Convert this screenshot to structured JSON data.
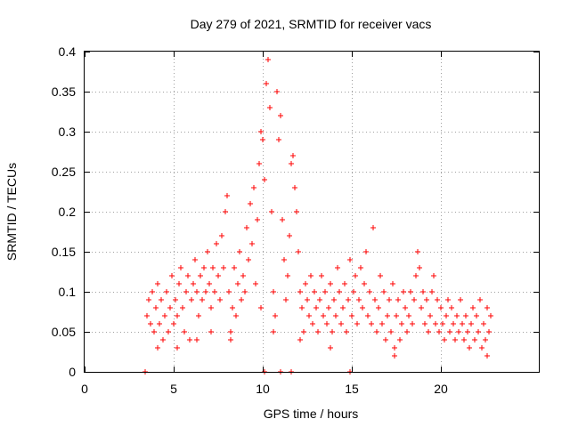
{
  "chart_data": {
    "type": "scatter",
    "title": "Day 279 of 2021, SRMTID for receiver vacs",
    "xlabel": "GPS time / hours",
    "ylabel": "SRMTID / TECUs",
    "xlim": [
      0,
      25.5
    ],
    "ylim": [
      0,
      0.4
    ],
    "x_ticks": [
      0,
      5,
      10,
      15,
      20
    ],
    "x_tick_labels": [
      "0",
      "5",
      "10",
      "15",
      "20"
    ],
    "y_ticks": [
      0,
      0.05,
      0.1,
      0.15,
      0.2,
      0.25,
      0.3,
      0.35,
      0.4
    ],
    "y_tick_labels": [
      "0",
      "0.05",
      "0.1",
      "0.15",
      "0.2",
      "0.25",
      "0.3",
      "0.35",
      "0.4"
    ],
    "grid": true,
    "marker": "+",
    "color": "#ff0000",
    "series": [
      {
        "name": "SRMTID",
        "points": [
          [
            3.4,
            0.0
          ],
          [
            3.5,
            0.07
          ],
          [
            3.6,
            0.09
          ],
          [
            3.7,
            0.06
          ],
          [
            3.8,
            0.1
          ],
          [
            3.9,
            0.05
          ],
          [
            4.0,
            0.08
          ],
          [
            4.1,
            0.11
          ],
          [
            4.2,
            0.06
          ],
          [
            4.3,
            0.09
          ],
          [
            4.4,
            0.04
          ],
          [
            4.5,
            0.07
          ],
          [
            4.6,
            0.1
          ],
          [
            4.7,
            0.05
          ],
          [
            4.8,
            0.08
          ],
          [
            4.9,
            0.12
          ],
          [
            5.0,
            0.06
          ],
          [
            5.1,
            0.09
          ],
          [
            5.2,
            0.07
          ],
          [
            5.3,
            0.11
          ],
          [
            5.4,
            0.13
          ],
          [
            5.5,
            0.08
          ],
          [
            5.6,
            0.05
          ],
          [
            5.7,
            0.1
          ],
          [
            5.8,
            0.12
          ],
          [
            5.9,
            0.04
          ],
          [
            6.0,
            0.09
          ],
          [
            6.1,
            0.11
          ],
          [
            6.2,
            0.14
          ],
          [
            6.3,
            0.1
          ],
          [
            6.4,
            0.07
          ],
          [
            6.5,
            0.12
          ],
          [
            6.6,
            0.09
          ],
          [
            6.7,
            0.13
          ],
          [
            6.8,
            0.1
          ],
          [
            6.9,
            0.15
          ],
          [
            7.0,
            0.11
          ],
          [
            7.1,
            0.08
          ],
          [
            7.2,
            0.13
          ],
          [
            7.3,
            0.1
          ],
          [
            7.4,
            0.16
          ],
          [
            7.5,
            0.12
          ],
          [
            7.6,
            0.09
          ],
          [
            7.7,
            0.17
          ],
          [
            7.8,
            0.13
          ],
          [
            7.9,
            0.2
          ],
          [
            8.0,
            0.22
          ],
          [
            8.1,
            0.1
          ],
          [
            8.2,
            0.05
          ],
          [
            8.3,
            0.08
          ],
          [
            8.4,
            0.13
          ],
          [
            8.5,
            0.07
          ],
          [
            8.6,
            0.11
          ],
          [
            8.7,
            0.15
          ],
          [
            8.8,
            0.09
          ],
          [
            8.9,
            0.12
          ],
          [
            9.0,
            0.1
          ],
          [
            9.1,
            0.18
          ],
          [
            9.2,
            0.14
          ],
          [
            9.3,
            0.21
          ],
          [
            9.4,
            0.16
          ],
          [
            9.5,
            0.23
          ],
          [
            9.6,
            0.11
          ],
          [
            9.7,
            0.19
          ],
          [
            9.8,
            0.26
          ],
          [
            9.9,
            0.3
          ],
          [
            10.0,
            0.29
          ],
          [
            10.1,
            0.24
          ],
          [
            10.2,
            0.36
          ],
          [
            10.3,
            0.39
          ],
          [
            10.4,
            0.33
          ],
          [
            10.5,
            0.2
          ],
          [
            10.6,
            0.1
          ],
          [
            10.7,
            0.07
          ],
          [
            10.8,
            0.35
          ],
          [
            10.9,
            0.29
          ],
          [
            11.0,
            0.32
          ],
          [
            11.1,
            0.19
          ],
          [
            11.2,
            0.14
          ],
          [
            11.3,
            0.09
          ],
          [
            11.4,
            0.12
          ],
          [
            11.5,
            0.17
          ],
          [
            11.6,
            0.26
          ],
          [
            11.7,
            0.27
          ],
          [
            11.8,
            0.23
          ],
          [
            11.9,
            0.2
          ],
          [
            12.0,
            0.15
          ],
          [
            12.1,
            0.1
          ],
          [
            12.2,
            0.08
          ],
          [
            12.3,
            0.05
          ],
          [
            12.4,
            0.11
          ],
          [
            12.5,
            0.09
          ],
          [
            12.6,
            0.07
          ],
          [
            12.7,
            0.12
          ],
          [
            12.8,
            0.06
          ],
          [
            12.9,
            0.1
          ],
          [
            13.0,
            0.08
          ],
          [
            13.1,
            0.05
          ],
          [
            13.2,
            0.09
          ],
          [
            13.3,
            0.12
          ],
          [
            13.4,
            0.07
          ],
          [
            13.5,
            0.1
          ],
          [
            13.6,
            0.06
          ],
          [
            13.7,
            0.08
          ],
          [
            13.8,
            0.11
          ],
          [
            13.9,
            0.05
          ],
          [
            14.0,
            0.09
          ],
          [
            14.1,
            0.07
          ],
          [
            14.2,
            0.13
          ],
          [
            14.3,
            0.1
          ],
          [
            14.4,
            0.06
          ],
          [
            14.5,
            0.08
          ],
          [
            14.6,
            0.11
          ],
          [
            14.7,
            0.05
          ],
          [
            14.8,
            0.09
          ],
          [
            14.9,
            0.14
          ],
          [
            15.0,
            0.07
          ],
          [
            15.1,
            0.1
          ],
          [
            15.2,
            0.12
          ],
          [
            15.3,
            0.06
          ],
          [
            15.4,
            0.09
          ],
          [
            15.5,
            0.13
          ],
          [
            15.6,
            0.08
          ],
          [
            15.7,
            0.11
          ],
          [
            15.8,
            0.15
          ],
          [
            15.9,
            0.07
          ],
          [
            16.0,
            0.1
          ],
          [
            16.1,
            0.06
          ],
          [
            16.2,
            0.18
          ],
          [
            16.3,
            0.09
          ],
          [
            16.4,
            0.05
          ],
          [
            16.5,
            0.08
          ],
          [
            16.6,
            0.12
          ],
          [
            16.7,
            0.06
          ],
          [
            16.8,
            0.1
          ],
          [
            16.9,
            0.04
          ],
          [
            17.0,
            0.07
          ],
          [
            17.1,
            0.09
          ],
          [
            17.2,
            0.05
          ],
          [
            17.3,
            0.11
          ],
          [
            17.4,
            0.03
          ],
          [
            17.5,
            0.07
          ],
          [
            17.6,
            0.09
          ],
          [
            17.7,
            0.04
          ],
          [
            17.8,
            0.06
          ],
          [
            17.9,
            0.1
          ],
          [
            18.0,
            0.08
          ],
          [
            18.1,
            0.05
          ],
          [
            18.2,
            0.07
          ],
          [
            18.3,
            0.1
          ],
          [
            18.4,
            0.06
          ],
          [
            18.5,
            0.09
          ],
          [
            18.6,
            0.12
          ],
          [
            18.7,
            0.15
          ],
          [
            18.8,
            0.13
          ],
          [
            18.9,
            0.08
          ],
          [
            19.0,
            0.1
          ],
          [
            19.1,
            0.06
          ],
          [
            19.2,
            0.09
          ],
          [
            19.3,
            0.05
          ],
          [
            19.4,
            0.07
          ],
          [
            19.5,
            0.1
          ],
          [
            19.6,
            0.12
          ],
          [
            19.7,
            0.06
          ],
          [
            19.8,
            0.09
          ],
          [
            19.9,
            0.05
          ],
          [
            20.0,
            0.08
          ],
          [
            20.1,
            0.06
          ],
          [
            20.2,
            0.04
          ],
          [
            20.3,
            0.07
          ],
          [
            20.4,
            0.09
          ],
          [
            20.5,
            0.05
          ],
          [
            20.6,
            0.08
          ],
          [
            20.7,
            0.06
          ],
          [
            20.8,
            0.04
          ],
          [
            20.9,
            0.07
          ],
          [
            21.0,
            0.05
          ],
          [
            21.1,
            0.09
          ],
          [
            21.2,
            0.06
          ],
          [
            21.3,
            0.04
          ],
          [
            21.4,
            0.07
          ],
          [
            21.5,
            0.05
          ],
          [
            21.6,
            0.03
          ],
          [
            21.7,
            0.06
          ],
          [
            21.8,
            0.08
          ],
          [
            21.9,
            0.04
          ],
          [
            22.0,
            0.07
          ],
          [
            22.1,
            0.05
          ],
          [
            22.2,
            0.09
          ],
          [
            22.3,
            0.03
          ],
          [
            22.4,
            0.06
          ],
          [
            22.5,
            0.04
          ],
          [
            22.6,
            0.08
          ],
          [
            22.7,
            0.05
          ],
          [
            22.8,
            0.07
          ],
          [
            10.1,
            0.0
          ],
          [
            11.0,
            0.0
          ],
          [
            11.6,
            0.0
          ],
          [
            14.9,
            0.0
          ],
          [
            5.2,
            0.03
          ],
          [
            6.3,
            0.04
          ],
          [
            8.2,
            0.04
          ],
          [
            9.9,
            0.08
          ],
          [
            10.6,
            0.05
          ],
          [
            12.1,
            0.04
          ],
          [
            13.8,
            0.03
          ],
          [
            17.4,
            0.02
          ],
          [
            22.6,
            0.02
          ],
          [
            4.1,
            0.03
          ],
          [
            7.1,
            0.05
          ]
        ]
      }
    ]
  }
}
